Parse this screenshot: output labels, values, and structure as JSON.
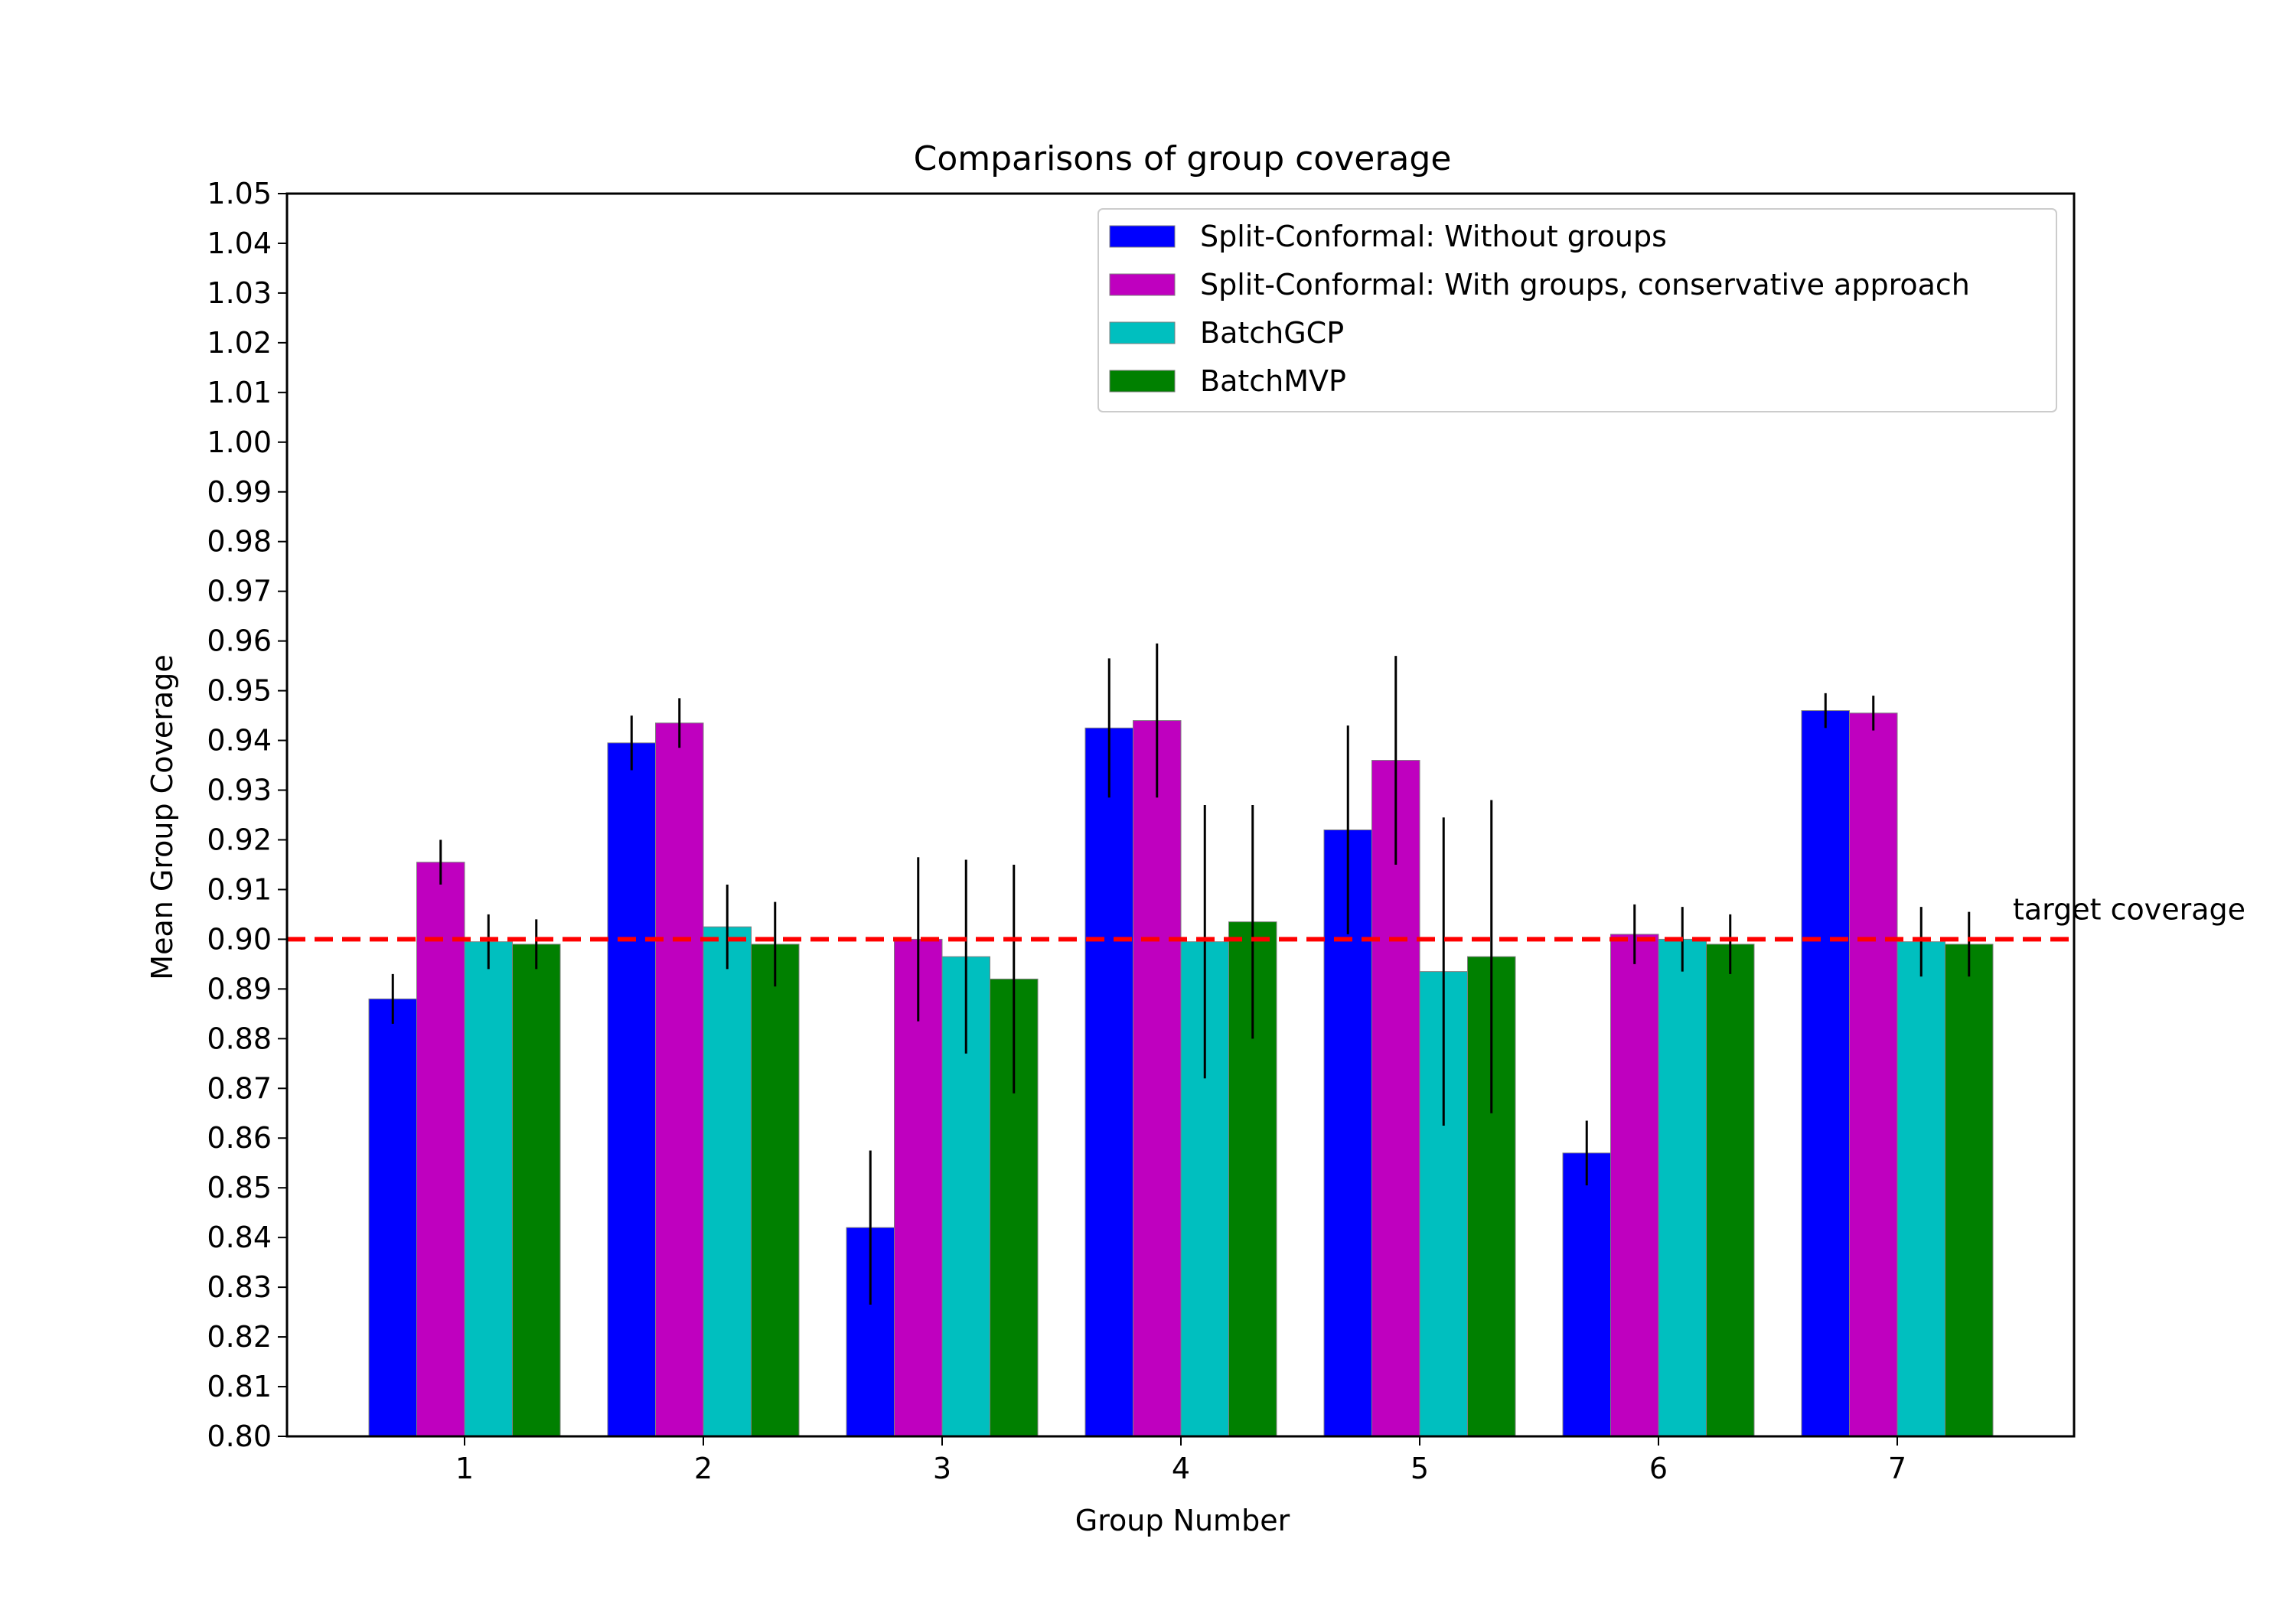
{
  "chart_data": {
    "type": "bar",
    "title": "Comparisons of group coverage",
    "xlabel": "Group Number",
    "ylabel": "Mean Group Coverage",
    "ylim": [
      0.8,
      1.05
    ],
    "yticks": [
      0.8,
      0.81,
      0.82,
      0.83,
      0.84,
      0.85,
      0.86,
      0.87,
      0.88,
      0.89,
      0.9,
      0.91,
      0.92,
      0.93,
      0.94,
      0.95,
      0.96,
      0.97,
      0.98,
      0.99,
      1.0,
      1.01,
      1.02,
      1.03,
      1.04,
      1.05
    ],
    "categories": [
      "1",
      "2",
      "3",
      "4",
      "5",
      "6",
      "7"
    ],
    "legend_position": "top-right",
    "series": [
      {
        "name": "Split-Conformal: Without groups",
        "color": "#0000ff",
        "values": [
          0.888,
          0.9395,
          0.842,
          0.9425,
          0.922,
          0.857,
          0.946
        ],
        "errors": [
          0.005,
          0.0055,
          0.0155,
          0.014,
          0.021,
          0.0065,
          0.0035
        ]
      },
      {
        "name": "Split-Conformal: With groups, conservative approach",
        "color": "#bf00bf",
        "values": [
          0.9155,
          0.9435,
          0.9,
          0.944,
          0.936,
          0.901,
          0.9455
        ],
        "errors": [
          0.0045,
          0.005,
          0.0165,
          0.0155,
          0.021,
          0.006,
          0.0035
        ]
      },
      {
        "name": "BatchGCP",
        "color": "#00bfbf",
        "values": [
          0.8995,
          0.9025,
          0.8965,
          0.8995,
          0.8935,
          0.9,
          0.8995
        ],
        "errors": [
          0.0055,
          0.0085,
          0.0195,
          0.0275,
          0.031,
          0.0065,
          0.007
        ]
      },
      {
        "name": "BatchMVP",
        "color": "#008000",
        "values": [
          0.899,
          0.899,
          0.892,
          0.9035,
          0.8965,
          0.899,
          0.899
        ],
        "errors": [
          0.005,
          0.0085,
          0.023,
          0.0235,
          0.0315,
          0.006,
          0.0065
        ]
      }
    ],
    "reference_line": {
      "value": 0.9,
      "label": "target coverage",
      "color": "#ff0000"
    }
  }
}
